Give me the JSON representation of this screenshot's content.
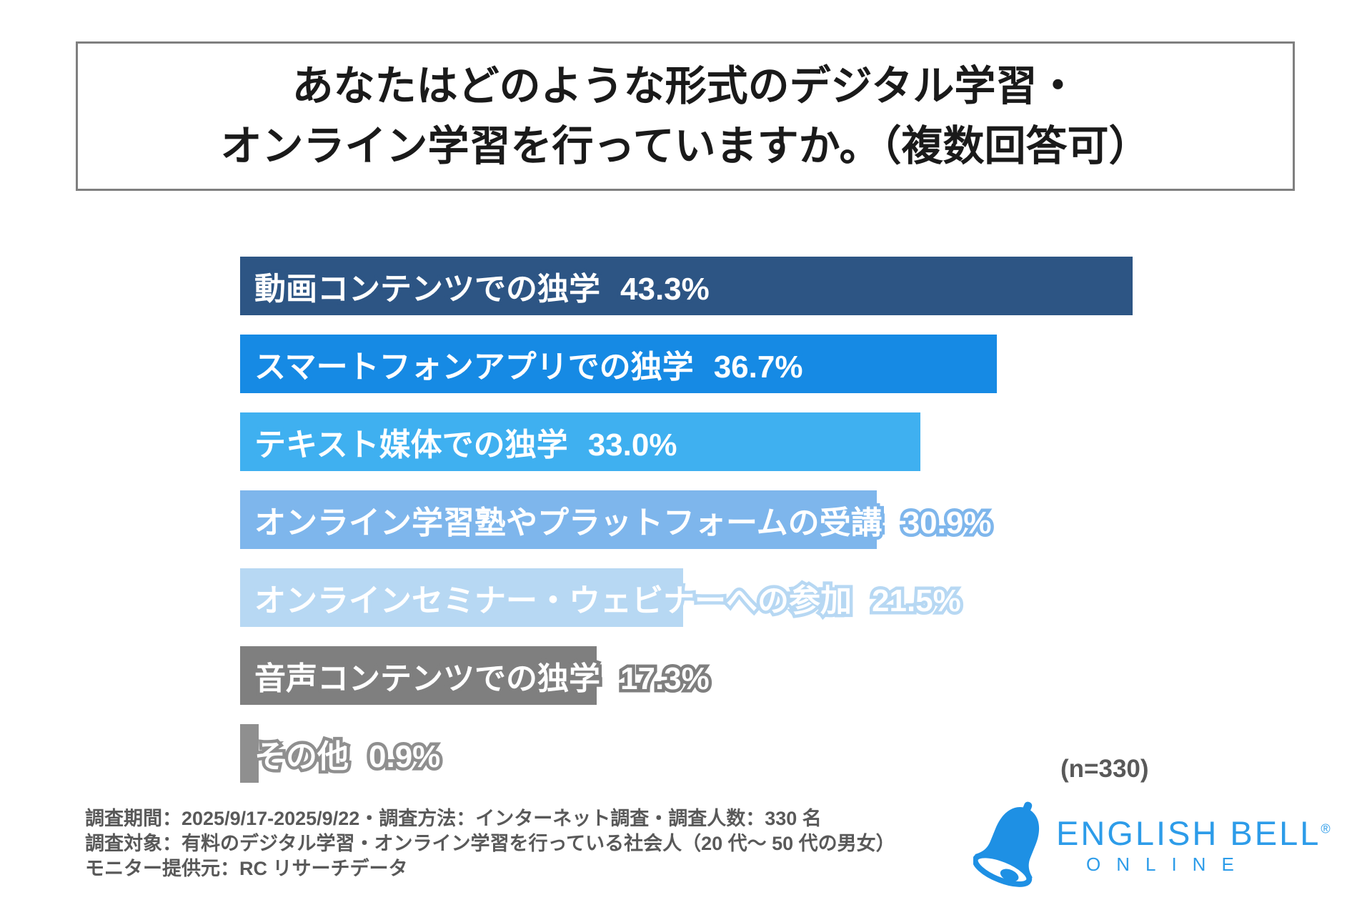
{
  "title": {
    "line1": "あなたはどのような形式のデジタル学習・",
    "line2": "オンライン学習を行っていますか。（複数回答可）"
  },
  "chart_data": {
    "type": "bar",
    "orientation": "horizontal",
    "unit": "%",
    "xlim": [
      0,
      45
    ],
    "grid": false,
    "categories": [
      "動画コンテンツでの独学",
      "スマートフォンアプリでの独学",
      "テキスト媒体での独学",
      "オンライン学習塾やプラットフォームの受講",
      "オンラインセミナー・ウェビナーへの参加",
      "音声コンテンツでの独学",
      "その他"
    ],
    "values": [
      43.3,
      36.7,
      33.0,
      30.9,
      21.5,
      17.3,
      0.9
    ],
    "bars": [
      {
        "label": "動画コンテンツでの独学",
        "value": 43.3,
        "value_label": "43.3%",
        "color": "#2d5584"
      },
      {
        "label": "スマートフォンアプリでの独学",
        "value": 36.7,
        "value_label": "36.7%",
        "color": "#168ae4"
      },
      {
        "label": "テキスト媒体での独学",
        "value": 33.0,
        "value_label": "33.0%",
        "color": "#3fb0f0"
      },
      {
        "label": "オンライン学習塾やプラットフォームの受講",
        "value": 30.9,
        "value_label": "30.9%",
        "color": "#7eb6ec"
      },
      {
        "label": "オンラインセミナー・ウェビナーへの参加",
        "value": 21.5,
        "value_label": "21.5%",
        "color": "#b7d8f3"
      },
      {
        "label": "音声コンテンツでの独学",
        "value": 17.3,
        "value_label": "17.3%",
        "color": "#7f7f7f"
      },
      {
        "label": "その他",
        "value": 0.9,
        "value_label": "0.9%",
        "color": "#8f8f8f"
      }
    ],
    "sample_label": "(n=330)"
  },
  "footer": {
    "lines": [
      "調査期間：2025/9/17-2025/9/22・調査方法：インターネット調査・調査人数：330 名",
      "調査対象：有料のデジタル学習・オンライン学習を行っている社会人（20 代〜 50 代の男女）",
      "モニター提供元：RC リサーチデータ"
    ]
  },
  "logo": {
    "brand": "ENGLISH BELL",
    "reg": "®",
    "sub_brand": "ONLINE",
    "brand_color": "#2d9ce9",
    "bell_color": "#1e90e4"
  }
}
